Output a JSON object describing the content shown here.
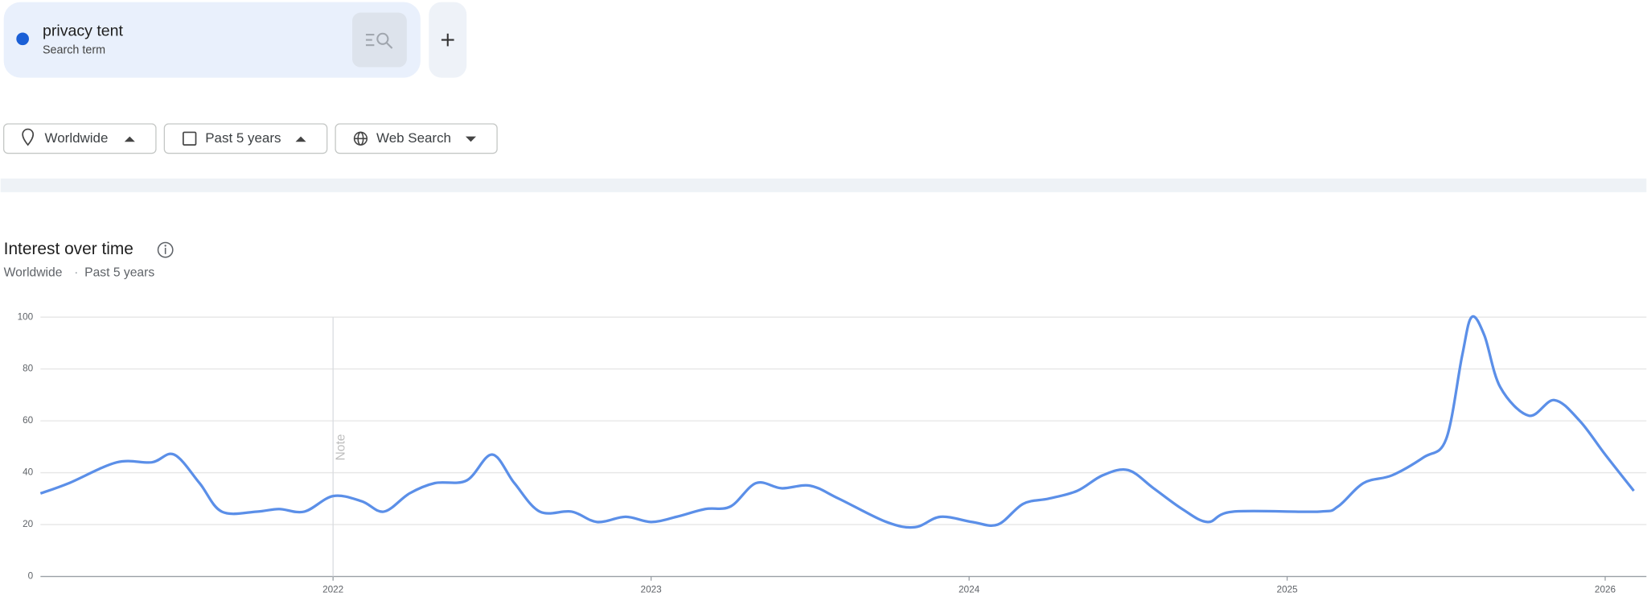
{
  "search_card": {
    "term": "privacy tent",
    "kind": "Search term"
  },
  "filters": [
    "Worldwide",
    "Past 5 years",
    "Web Search"
  ],
  "subtitle": {
    "location": "Worldwide",
    "separator": "·",
    "period": "Past 5 years"
  },
  "chart_data": {
    "type": "line",
    "title": "Interest over time",
    "color": "#5b8fe8",
    "grid": true,
    "annotation": {
      "text": "Note",
      "x": 2022
    },
    "x": [
      2021.08,
      2021.17,
      2021.32,
      2021.43,
      2021.5,
      2021.58,
      2021.65,
      2021.76,
      2021.83,
      2021.91,
      2022.0,
      2022.09,
      2022.16,
      2022.24,
      2022.32,
      2022.42,
      2022.5,
      2022.57,
      2022.65,
      2022.75,
      2022.83,
      2022.92,
      2023.0,
      2023.08,
      2023.17,
      2023.25,
      2023.33,
      2023.41,
      2023.5,
      2023.59,
      2023.74,
      2023.83,
      2023.91,
      2024.01,
      2024.09,
      2024.17,
      2024.25,
      2024.34,
      2024.42,
      2024.5,
      2024.58,
      2024.67,
      2024.75,
      2024.83,
      2025.1,
      2025.16,
      2025.24,
      2025.33,
      2025.43,
      2025.5,
      2025.55,
      2025.58,
      2025.62,
      2025.67,
      2025.76,
      2025.84,
      2025.92,
      2026.0,
      2026.09
    ],
    "values": [
      32,
      36,
      44,
      44,
      47,
      36,
      25,
      25,
      26,
      25,
      31,
      29,
      25,
      32,
      36,
      37,
      47,
      36,
      25,
      25,
      21,
      23,
      21,
      23,
      26,
      27,
      36,
      34,
      35,
      30,
      21,
      19,
      23,
      21,
      20,
      28,
      30,
      33,
      39,
      41,
      34,
      26,
      21,
      25,
      25,
      27,
      36,
      39,
      46,
      53,
      85,
      100,
      93,
      73,
      62,
      68,
      60,
      47,
      33
    ],
    "xlim": [
      2021.08,
      2026.09
    ],
    "xticks": [
      2022,
      2023,
      2024,
      2025,
      2026
    ],
    "ylim": [
      0,
      100
    ],
    "yticks": [
      0,
      20,
      40,
      60,
      80,
      100
    ]
  }
}
